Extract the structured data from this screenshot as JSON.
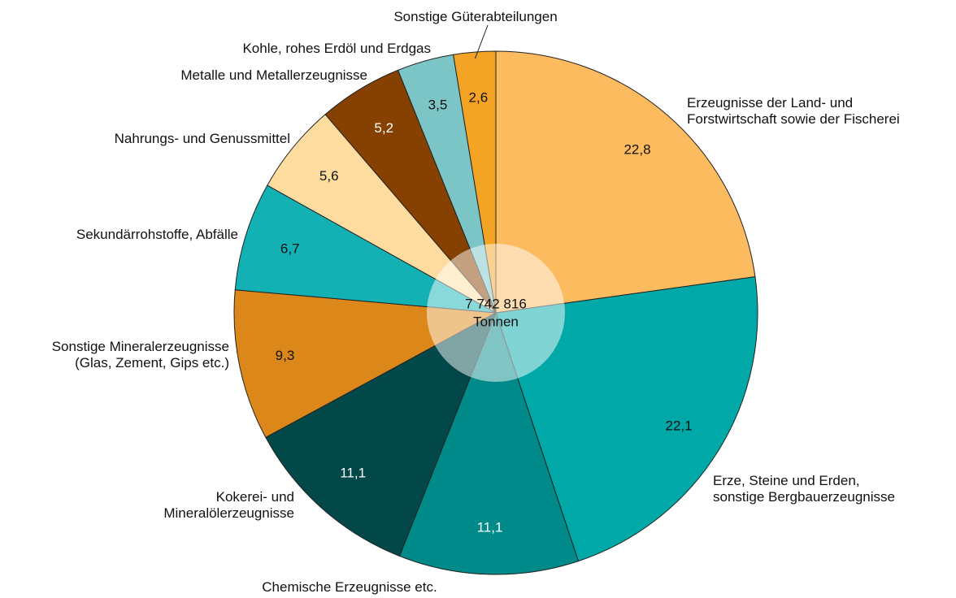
{
  "chart_data": {
    "type": "pie",
    "center_label": "7 742 816",
    "center_unit": "Tonnen",
    "categories": [
      "Erzeugnisse der Land- und\nForstwirtschaft sowie der Fischerei",
      "Erze, Steine und Erden,\nsonstige Bergbauerzeugnisse",
      "Chemische Erzeugnisse etc.",
      "Kokerei- und\nMineralölerzeugnisse",
      "Sonstige Mineralerzeugnisse\n(Glas, Zement, Gips etc.)",
      "Sekundärrohstoffe, Abfälle",
      "Nahrungs- und Genussmittel",
      "Metalle und Metallerzeugnisse",
      "Kohle, rohes Erdöl und Erdgas",
      "Sonstige Güterabteilungen"
    ],
    "values": [
      22.8,
      22.1,
      11.1,
      11.1,
      9.3,
      6.7,
      5.6,
      5.2,
      3.5,
      2.6
    ],
    "value_labels": [
      "22,8",
      "22,1",
      "11,1",
      "11,1",
      "9,3",
      "6,7",
      "5,6",
      "5,2",
      "3,5",
      "2,6"
    ],
    "colors": [
      "#fbbb5e",
      "#00a8a7",
      "#008a89",
      "#024848",
      "#dc8719",
      "#13b1b4",
      "#fedc9f",
      "#864000",
      "#7bc5c7",
      "#f4a425"
    ]
  }
}
